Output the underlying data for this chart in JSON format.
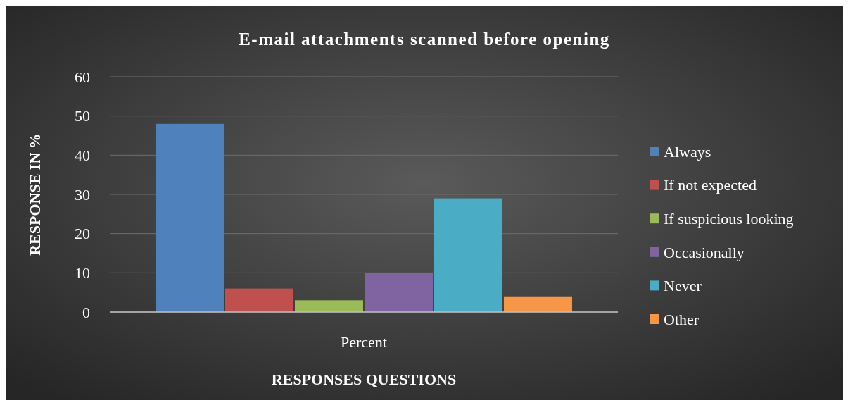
{
  "chart_data": {
    "type": "bar",
    "title": "E-mail attachments scanned before opening",
    "xlabel": "RESPONSES QUESTIONS",
    "ylabel": "RESPONSE IN %",
    "categories": [
      "Percent"
    ],
    "series": [
      {
        "name": "Always",
        "color": "#4f81bd",
        "values": [
          48
        ]
      },
      {
        "name": "If not expected",
        "color": "#c0504d",
        "values": [
          6
        ]
      },
      {
        "name": "If suspicious looking",
        "color": "#9bbb59",
        "values": [
          3
        ]
      },
      {
        "name": "Occasionally",
        "color": "#8064a2",
        "values": [
          10
        ]
      },
      {
        "name": "Never",
        "color": "#4bacc6",
        "values": [
          29
        ]
      },
      {
        "name": "Other",
        "color": "#f79646",
        "values": [
          4
        ]
      }
    ],
    "ylim": [
      0,
      60
    ],
    "yticks": [
      0,
      10,
      20,
      30,
      40,
      50,
      60
    ],
    "grid": "y",
    "legend": "right"
  }
}
